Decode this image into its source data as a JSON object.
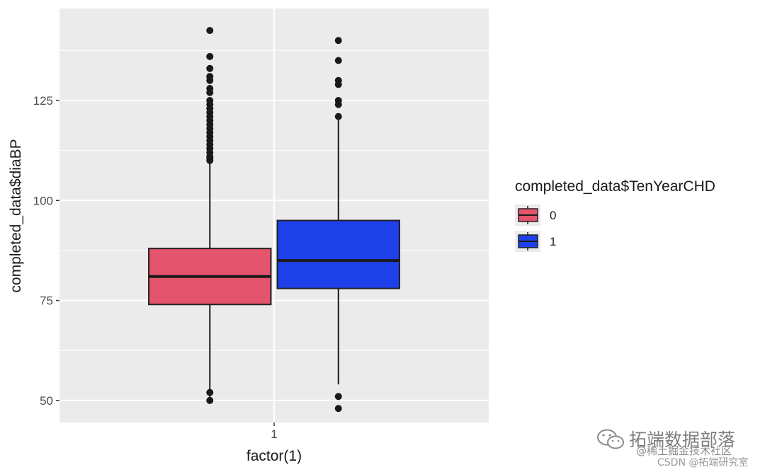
{
  "chart_data": {
    "type": "boxplot",
    "xlabel": "factor(1)",
    "ylabel": "completed_data$diaBP",
    "x_categories": [
      "1"
    ],
    "ylim": [
      44.5,
      148
    ],
    "y_ticks": [
      50,
      75,
      100,
      125
    ],
    "grid": true,
    "legend": {
      "title": "completed_data$TenYearCHD",
      "position": "right",
      "entries": [
        {
          "label": "0",
          "color": "#E5546D"
        },
        {
          "label": "1",
          "color": "#1E40E8"
        }
      ]
    },
    "series": [
      {
        "name": "0",
        "color": "#E5546D",
        "min": 50,
        "q1": 74,
        "median": 81,
        "q3": 88,
        "max": 110,
        "outliers": [
          50,
          52,
          110,
          110.5,
          111,
          112,
          113,
          114,
          115,
          116,
          117,
          118,
          119,
          120,
          121,
          122,
          123,
          124,
          125,
          127,
          128,
          130,
          131,
          133,
          136,
          142.5
        ]
      },
      {
        "name": "1",
        "color": "#1E40E8",
        "min": 54,
        "q1": 78,
        "median": 85,
        "q3": 95,
        "max": 120.5,
        "outliers": [
          48,
          51,
          121,
          124,
          125,
          129,
          130,
          135,
          140
        ]
      }
    ]
  },
  "watermark": {
    "main": "拓端数据部落",
    "sub": "@稀土掘金技术社区",
    "csdn": "CSDN @拓端研究室"
  }
}
